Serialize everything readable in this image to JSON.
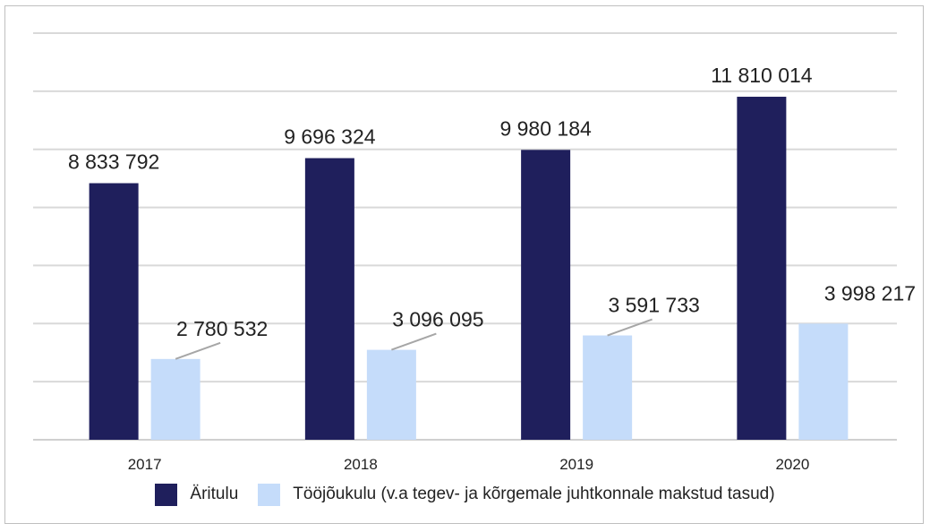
{
  "chart_data": {
    "type": "bar",
    "categories": [
      "2017",
      "2018",
      "2019",
      "2020"
    ],
    "series": [
      {
        "name": "Äritulu",
        "color": "#1f1f5c",
        "values": [
          8833792,
          9696324,
          9980184,
          11810014
        ],
        "labels": [
          "8 833 792",
          "9 696 324",
          "9 980 184",
          "11 810 014"
        ]
      },
      {
        "name": "Tööjõukulu (v.a tegev- ja kõrgemale juhtkonnale makstud tasud)",
        "color": "#c5dcfa",
        "values": [
          2780532,
          3096095,
          3591733,
          3998217
        ],
        "labels": [
          "2 780 532",
          "3 096 095",
          "3 591 733",
          "3 998 217"
        ]
      }
    ],
    "ylim": [
      0,
      14000000
    ],
    "grid": true,
    "legend": "bottom"
  }
}
